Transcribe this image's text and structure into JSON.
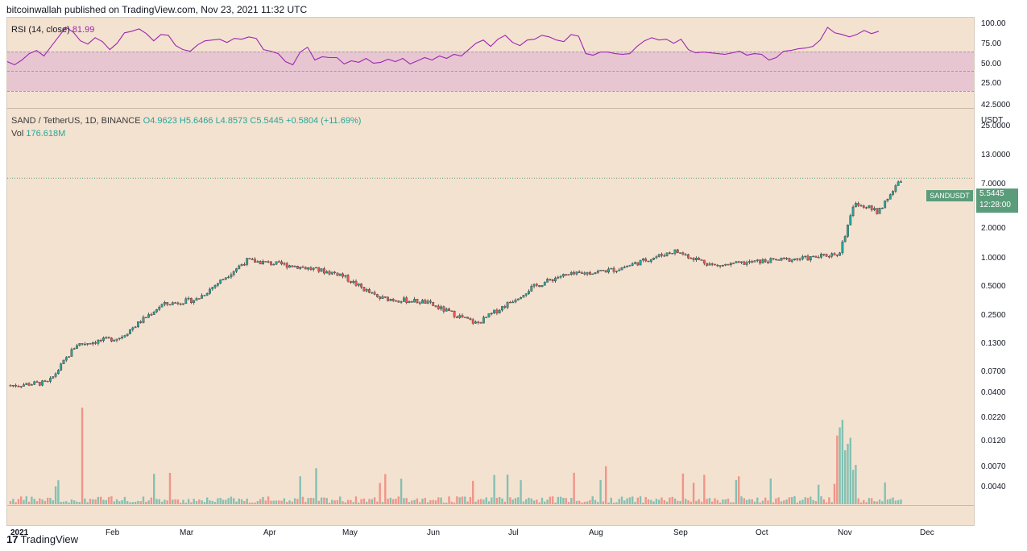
{
  "header": {
    "publisher": "bitcoinwallah published on TradingView.com, Nov 23, 2021 11:32 UTC"
  },
  "rsi": {
    "label": "RSI (14, close)",
    "value": "81.99",
    "ticks": [
      "100.00",
      "75.00",
      "50.00",
      "25.00"
    ],
    "values": [
      45,
      41,
      47,
      55,
      59,
      52,
      64,
      76,
      88,
      82,
      71,
      67,
      75,
      70,
      60,
      68,
      81,
      83,
      86,
      80,
      71,
      79,
      78,
      65,
      60,
      58,
      66,
      71,
      72,
      73,
      69,
      74,
      73,
      76,
      74,
      60,
      58,
      55,
      45,
      41,
      57,
      63,
      47,
      51,
      50,
      50,
      42,
      46,
      44,
      49,
      43,
      44,
      48,
      45,
      49,
      42,
      46,
      50,
      47,
      52,
      49,
      54,
      52,
      60,
      68,
      72,
      64,
      73,
      78,
      69,
      65,
      72,
      73,
      78,
      76,
      72,
      70,
      79,
      77,
      55,
      53,
      57,
      57,
      55,
      54,
      55,
      64,
      71,
      75,
      72,
      73,
      68,
      73,
      60,
      56,
      57,
      56,
      55,
      54,
      56,
      58,
      53,
      55,
      54,
      47,
      50,
      58,
      59,
      61,
      62,
      64,
      72,
      88,
      81,
      79,
      76,
      79,
      84,
      80,
      83
    ]
  },
  "main": {
    "symbol_label": "SAND / TetherUS, 1D, BINANCE",
    "ohlc": {
      "o": "O4.9623",
      "h": "H5.6466",
      "l": "L4.8573",
      "c": "C5.5445",
      "chg": "+0.5804 (+11.69%)"
    },
    "vol_label": "Vol",
    "vol_value": "176.618M",
    "last_price_tag": "SANDUSDT",
    "last_price": "5.5445",
    "countdown": "12:28:00",
    "price_axis_unit": "USDT"
  },
  "price_ticks": [
    "42.5000",
    "25.0000",
    "13.0000",
    "7.0000",
    "2.0000",
    "1.0000",
    "0.5000",
    "0.2500",
    "0.1300",
    "0.0700",
    "0.0400",
    "0.0220",
    "0.0120",
    "0.0070",
    "0.0040"
  ],
  "x_ticks": [
    "2021",
    "Feb",
    "Mar",
    "Apr",
    "May",
    "Jun",
    "Jul",
    "Aug",
    "Sep",
    "Oct",
    "Nov",
    "Dec"
  ],
  "footer": {
    "brand": "TradingView",
    "logo_mark": "17"
  },
  "colors": {
    "up": "#26a69a",
    "down": "#ef5350",
    "rsi": "#9c27b0",
    "background": "#f4e2d0",
    "tag": "#5b9c7a"
  },
  "chart_data": {
    "type": "line",
    "title": "SAND / TetherUS, 1D, BINANCE",
    "x": [
      "2021-01-01",
      "2021-01-15",
      "2021-01-25",
      "2021-02-10",
      "2021-02-25",
      "2021-03-10",
      "2021-03-28",
      "2021-04-15",
      "2021-05-01",
      "2021-05-15",
      "2021-06-01",
      "2021-06-20",
      "2021-07-10",
      "2021-07-20",
      "2021-08-10",
      "2021-08-31",
      "2021-09-15",
      "2021-10-01",
      "2021-10-20",
      "2021-10-30",
      "2021-11-05",
      "2021-11-13",
      "2021-11-22"
    ],
    "series": [
      {
        "name": "SANDUSDT",
        "values": [
          0.042,
          0.045,
          0.11,
          0.13,
          0.28,
          0.32,
          0.8,
          0.7,
          0.58,
          0.33,
          0.3,
          0.18,
          0.42,
          0.55,
          0.65,
          1.0,
          0.7,
          0.78,
          0.85,
          0.95,
          3.2,
          2.5,
          5.5445
        ]
      }
    ],
    "ylabel": "USDT",
    "y_scale": "log",
    "ylim": [
      0.0038,
      42.5
    ]
  }
}
